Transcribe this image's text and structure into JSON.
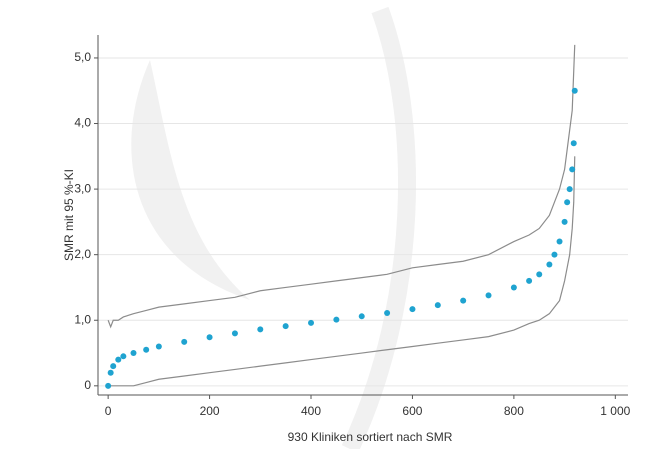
{
  "chart_data": {
    "type": "scatter",
    "xlabel": "930 Kliniken sortiert nach SMR",
    "ylabel": "SMR mit 95 %-KI",
    "x": [
      0,
      5,
      10,
      20,
      30,
      50,
      75,
      100,
      150,
      200,
      250,
      300,
      350,
      400,
      450,
      500,
      550,
      600,
      650,
      700,
      750,
      800,
      830,
      850,
      870,
      880,
      890,
      900,
      905,
      910,
      915,
      918,
      920
    ],
    "values": [
      0,
      0.2,
      0.3,
      0.4,
      0.45,
      0.5,
      0.55,
      0.6,
      0.67,
      0.74,
      0.8,
      0.86,
      0.91,
      0.96,
      1.01,
      1.06,
      1.11,
      1.17,
      1.23,
      1.3,
      1.38,
      1.5,
      1.6,
      1.7,
      1.85,
      2.0,
      2.2,
      2.5,
      2.8,
      3.0,
      3.3,
      3.7,
      4.5
    ],
    "lower": [
      0,
      0,
      0,
      0,
      0,
      0,
      0.05,
      0.1,
      0.15,
      0.2,
      0.25,
      0.3,
      0.35,
      0.4,
      0.45,
      0.5,
      0.55,
      0.6,
      0.65,
      0.7,
      0.75,
      0.85,
      0.95,
      1.0,
      1.1,
      1.2,
      1.3,
      1.6,
      1.8,
      2.0,
      2.4,
      2.8,
      3.5
    ],
    "upper": [
      1.0,
      0.9,
      1.0,
      1.0,
      1.05,
      1.1,
      1.15,
      1.2,
      1.25,
      1.3,
      1.35,
      1.45,
      1.5,
      1.55,
      1.6,
      1.65,
      1.7,
      1.8,
      1.85,
      1.9,
      2.0,
      2.2,
      2.3,
      2.4,
      2.6,
      2.8,
      3.0,
      3.3,
      3.6,
      3.9,
      4.2,
      4.8,
      5.2
    ],
    "color": "#1fa3d0",
    "ci_color": "#8c8c8c",
    "xlim": [
      -20,
      1025
    ],
    "ylim": [
      -0.14,
      5.35
    ],
    "xticks": [
      0,
      200,
      400,
      600,
      800,
      {
        "value": 1000,
        "label": "1 000"
      }
    ],
    "yticks": [
      0,
      {
        "value": 1,
        "label": "1,0"
      },
      {
        "value": 2,
        "label": "2,0"
      },
      {
        "value": 3,
        "label": "3,0"
      },
      {
        "value": 4,
        "label": "4,0"
      },
      {
        "value": 5,
        "label": "5,0"
      }
    ],
    "grid": true
  }
}
